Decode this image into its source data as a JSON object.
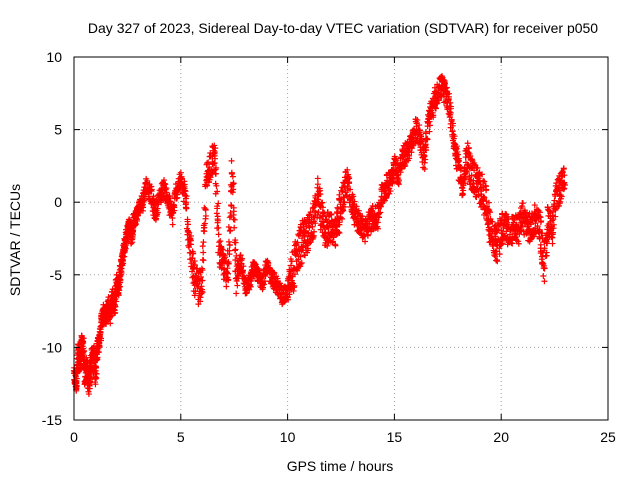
{
  "chart_data": {
    "type": "scatter",
    "title": "Day 327 of 2023, Sidereal Day-to-day VTEC variation (SDTVAR) for receiver p050",
    "xlabel": "GPS time / hours",
    "ylabel": "SDTVAR / TECUs",
    "xlim": [
      0,
      25
    ],
    "ylim": [
      -15,
      10
    ],
    "xticks": [
      0,
      5,
      10,
      15,
      20,
      25
    ],
    "xtick_labels": [
      "0",
      "5",
      "10",
      "15",
      "20",
      "25"
    ],
    "yticks": [
      -15,
      -10,
      -5,
      0,
      5,
      10
    ],
    "ytick_labels": [
      "-15",
      "-10",
      "-5",
      "0",
      "5",
      "10"
    ],
    "grid": true,
    "marker": "+",
    "color": "#ff0000",
    "series": [
      {
        "name": "SDTVAR",
        "x": [
          0.0,
          0.1,
          0.2,
          0.3,
          0.4,
          0.5,
          0.6,
          0.7,
          0.8,
          0.9,
          1.0,
          1.1,
          1.2,
          1.3,
          1.4,
          1.5,
          1.6,
          1.7,
          1.8,
          1.9,
          2.0,
          2.1,
          2.2,
          2.3,
          2.4,
          2.5,
          2.6,
          2.7,
          2.8,
          2.9,
          3.0,
          3.2,
          3.4,
          3.6,
          3.8,
          4.0,
          4.2,
          4.4,
          4.6,
          4.8,
          5.0,
          5.2,
          5.4,
          5.6,
          5.8,
          6.0,
          6.2,
          6.4,
          6.6,
          6.8,
          7.0,
          7.2,
          7.4,
          7.6,
          7.8,
          8.0,
          8.2,
          8.4,
          8.6,
          8.8,
          9.0,
          9.2,
          9.4,
          9.6,
          9.8,
          10.0,
          10.2,
          10.4,
          10.6,
          10.8,
          11.0,
          11.2,
          11.4,
          11.6,
          11.8,
          12.0,
          12.2,
          12.4,
          12.6,
          12.8,
          13.0,
          13.2,
          13.4,
          13.6,
          13.8,
          14.0,
          14.2,
          14.4,
          14.6,
          14.8,
          15.0,
          15.2,
          15.4,
          15.6,
          15.8,
          16.0,
          16.2,
          16.4,
          16.6,
          16.8,
          17.0,
          17.2,
          17.4,
          17.6,
          17.8,
          18.0,
          18.2,
          18.4,
          18.6,
          18.8,
          19.0,
          19.2,
          19.4,
          19.6,
          19.8,
          20.0,
          20.2,
          20.4,
          20.6,
          20.8,
          21.0,
          21.2,
          21.4,
          21.6,
          21.8,
          22.0,
          22.2,
          22.4,
          22.6,
          22.8,
          23.0
        ],
        "y": [
          -12.0,
          -12.5,
          -10.5,
          -11.0,
          -9.5,
          -12.0,
          -11.5,
          -12.5,
          -11.0,
          -10.5,
          -11.8,
          -10.0,
          -9.5,
          -8.0,
          -7.5,
          -8.0,
          -7.0,
          -7.8,
          -6.5,
          -7.2,
          -5.5,
          -6.0,
          -4.5,
          -3.5,
          -2.8,
          -2.0,
          -1.5,
          -2.5,
          -1.2,
          -1.0,
          -0.5,
          0.0,
          1.2,
          0.5,
          -0.8,
          0.3,
          1.0,
          0.2,
          -1.0,
          0.8,
          1.5,
          0.5,
          -2.5,
          -5.0,
          -6.0,
          -5.5,
          1.5,
          2.8,
          3.0,
          -3.5,
          -4.5,
          -5.0,
          2.5,
          -5.5,
          -4.0,
          -5.8,
          -5.6,
          -4.5,
          -5.0,
          -5.5,
          -4.5,
          -5.0,
          -5.5,
          -6.0,
          -6.5,
          -6.2,
          -5.0,
          -4.0,
          -3.0,
          -2.5,
          -2.0,
          -1.5,
          0.5,
          -1.0,
          -2.0,
          -1.5,
          -2.5,
          -1.0,
          0.5,
          1.5,
          0.0,
          -1.0,
          -1.5,
          -2.0,
          -1.5,
          -1.0,
          -1.2,
          0.5,
          1.0,
          1.5,
          2.5,
          2.0,
          3.0,
          3.5,
          4.0,
          5.0,
          4.5,
          3.0,
          5.5,
          6.5,
          7.5,
          8.0,
          7.5,
          6.5,
          4.0,
          2.5,
          1.0,
          3.0,
          2.0,
          1.5,
          1.0,
          0.5,
          -1.0,
          -2.5,
          -3.0,
          -2.0,
          -1.5,
          -2.5,
          -1.5,
          -2.0,
          -1.0,
          -1.5,
          -2.0,
          -1.0,
          -1.5,
          -4.5,
          -1.0,
          -2.0,
          0.5,
          1.0,
          1.5
        ],
        "spread": [
          0.6,
          0.6,
          0.9,
          0.9,
          0.9,
          0.8,
          0.8,
          0.8,
          0.8,
          0.8,
          0.8,
          0.6,
          0.6,
          0.6,
          0.6,
          0.6,
          0.6,
          0.6,
          0.6,
          0.6,
          0.6,
          0.6,
          0.6,
          0.5,
          0.5,
          0.5,
          0.5,
          0.5,
          0.5,
          0.5,
          0.5,
          0.6,
          0.6,
          0.6,
          0.6,
          0.6,
          0.6,
          0.6,
          0.6,
          0.6,
          0.6,
          0.8,
          1.2,
          1.2,
          1.2,
          1.0,
          1.0,
          1.0,
          1.0,
          1.0,
          1.0,
          1.0,
          1.0,
          1.0,
          0.6,
          0.6,
          0.5,
          0.5,
          0.5,
          0.5,
          0.6,
          0.6,
          0.6,
          0.6,
          0.6,
          0.6,
          1.5,
          1.5,
          1.5,
          1.5,
          1.2,
          1.2,
          1.2,
          1.2,
          1.2,
          1.2,
          1.2,
          1.2,
          1.2,
          1.2,
          0.8,
          0.8,
          0.8,
          0.8,
          0.8,
          0.8,
          0.8,
          0.8,
          0.8,
          0.8,
          0.8,
          0.8,
          0.8,
          0.8,
          0.8,
          0.8,
          0.8,
          0.8,
          0.8,
          0.8,
          0.8,
          0.8,
          0.8,
          0.8,
          0.8,
          0.8,
          0.8,
          1.2,
          1.2,
          1.2,
          1.2,
          1.2,
          1.2,
          1.2,
          1.2,
          1.2,
          1.0,
          1.0,
          1.0,
          1.0,
          1.0,
          1.0,
          1.0,
          1.0,
          1.0,
          1.0,
          1.0,
          1.0,
          1.0,
          1.0,
          1.0
        ]
      }
    ]
  }
}
